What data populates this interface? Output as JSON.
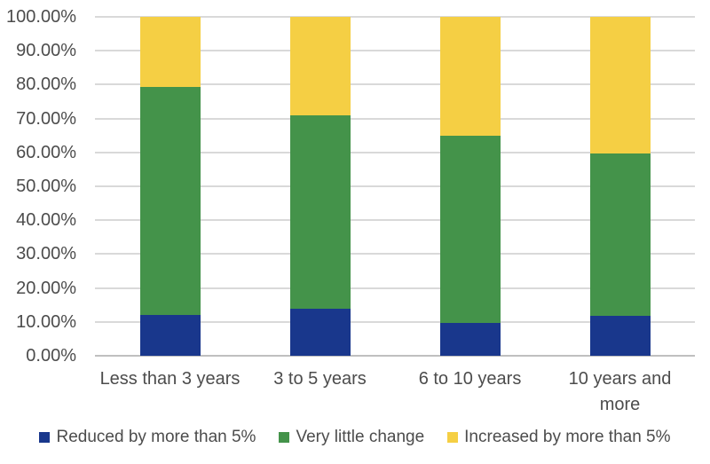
{
  "chart_data": {
    "type": "bar",
    "variant": "stacked-100-percent",
    "title": "",
    "categories": [
      "Less than 3 years",
      "3 to 5 years",
      "6 to 10 years",
      "10 years and\nmore"
    ],
    "series": [
      {
        "name": "Reduced by more than 5%",
        "color": "#19378C",
        "values": [
          12.0,
          14.0,
          9.7,
          11.8
        ]
      },
      {
        "name": "Very little change",
        "color": "#44934A",
        "values": [
          67.2,
          57.0,
          55.1,
          47.9
        ]
      },
      {
        "name": "Increased by more than 5%",
        "color": "#F5CF44",
        "values": [
          20.8,
          29.0,
          35.2,
          40.3
        ]
      }
    ],
    "y_axis": {
      "min": 0,
      "max": 100,
      "step": 10,
      "unit": "%",
      "tick_labels": [
        "100.00%",
        "90.00%",
        "80.00%",
        "70.00%",
        "60.00%",
        "50.00%",
        "40.00%",
        "30.00%",
        "20.00%",
        "10.00%",
        "0.00%"
      ]
    },
    "grid": true,
    "legend_position": "bottom",
    "colors": {
      "gridline": "#D9D9D9",
      "axis_line": "#BFBFBF",
      "label_text": "#4C4C4C",
      "background": "#FFFFFF"
    }
  }
}
